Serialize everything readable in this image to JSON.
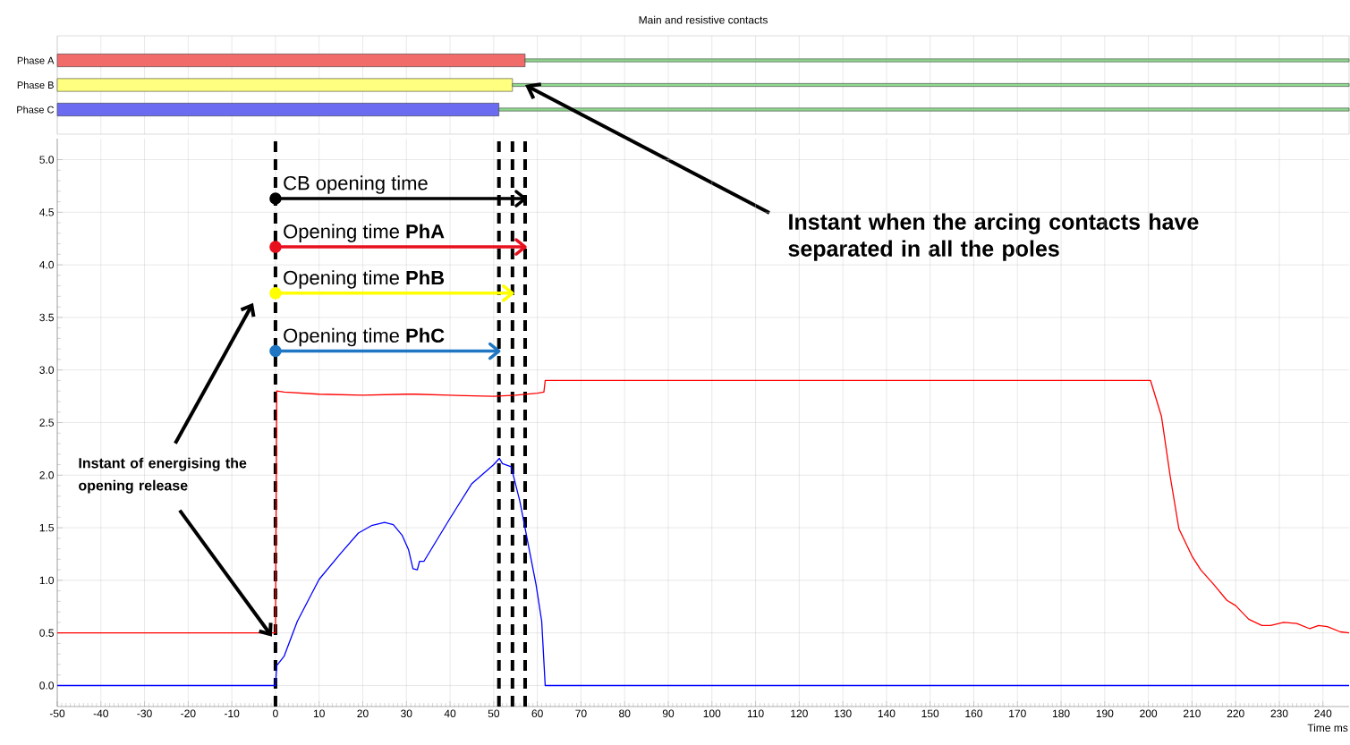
{
  "chart_data": [
    {
      "type": "bar",
      "orientation": "horizontal",
      "title": "Main and resistive contacts",
      "categories": [
        "Phase A",
        "Phase B",
        "Phase C"
      ],
      "series": [
        {
          "colors": [
            "#f26b6b",
            "#ffff80",
            "#6b6bf2"
          ],
          "base": [
            -50,
            -50,
            -50
          ],
          "values": [
            107.2,
            104.3,
            101.2
          ]
        },
        {
          "color": "#90d890",
          "base": [
            57.2,
            54.3,
            51.2
          ],
          "values": [
            188.8,
            191.7,
            194.8
          ]
        }
      ],
      "xlim": [
        -50,
        246
      ],
      "xticks": [
        -50,
        -40,
        -30,
        -20,
        -10,
        0,
        10,
        20,
        30,
        40,
        50,
        60,
        70,
        80,
        90,
        100,
        110,
        120,
        130,
        140,
        150,
        160,
        170,
        180,
        190,
        200,
        210,
        220,
        230,
        240
      ],
      "grid": "x",
      "tick_labels": "y",
      "annotations": [
        {
          "text": "Instant when the arcing contacts have separated in all the poles",
          "x": 57.2,
          "y": "Phase B"
        }
      ]
    },
    {
      "type": "line",
      "xlabel": "Time  ms",
      "series": [
        {
          "color": "#ff0000",
          "x": [
            -50,
            0,
            0.3,
            2,
            10,
            20,
            30,
            32,
            40,
            50,
            55,
            60,
            61.5,
            61.8,
            70,
            100,
            150,
            200,
            200.5,
            203,
            205,
            207,
            210,
            212,
            215,
            218,
            220,
            223,
            226,
            228,
            231,
            234,
            237,
            239,
            241,
            244,
            246
          ],
          "values": [
            0.5,
            0.5,
            2.8,
            2.79,
            2.77,
            2.76,
            2.77,
            2.77,
            2.76,
            2.75,
            2.76,
            2.78,
            2.79,
            2.9,
            2.9,
            2.9,
            2.9,
            2.9,
            2.9,
            2.56,
            1.99,
            1.49,
            1.23,
            1.1,
            0.96,
            0.81,
            0.76,
            0.63,
            0.57,
            0.57,
            0.6,
            0.59,
            0.54,
            0.57,
            0.56,
            0.51,
            0.5
          ]
        },
        {
          "color": "#0000ff",
          "x": [
            -50,
            0,
            0.3,
            2,
            5,
            10,
            15,
            19,
            22,
            25,
            27,
            29,
            30.5,
            31.5,
            32.5,
            33,
            34,
            40,
            45,
            50,
            51.3,
            52,
            54,
            56,
            59.7,
            61,
            61.8,
            246
          ],
          "values": [
            0,
            0,
            0.19,
            0.28,
            0.61,
            1.01,
            1.26,
            1.45,
            1.52,
            1.55,
            1.53,
            1.43,
            1.29,
            1.11,
            1.1,
            1.18,
            1.18,
            1.59,
            1.92,
            2.1,
            2.16,
            2.11,
            2.08,
            1.75,
            0.96,
            0.61,
            0,
            0
          ]
        },
        {
          "color": "#000000",
          "marker": "circle",
          "x": [
            0,
            57.2
          ],
          "values": [
            4.63,
            4.63
          ]
        },
        {
          "color": "#e8101e",
          "marker": "circle",
          "x": [
            0,
            57.2
          ],
          "values": [
            4.17,
            4.17
          ]
        },
        {
          "color": "#ffff00",
          "marker": "circle",
          "x": [
            0,
            54.3
          ],
          "values": [
            3.73,
            3.73
          ]
        },
        {
          "color": "#1f77c4",
          "marker": "circle",
          "x": [
            0,
            51.2
          ],
          "values": [
            3.18,
            3.18
          ]
        }
      ],
      "xlim": [
        -50,
        246
      ],
      "xticks": [
        -50,
        -40,
        -30,
        -20,
        -10,
        0,
        10,
        20,
        30,
        40,
        50,
        60,
        70,
        80,
        90,
        100,
        110,
        120,
        130,
        140,
        150,
        160,
        170,
        180,
        190,
        200,
        210,
        220,
        230,
        240
      ],
      "ylim": [
        -0.2,
        5.2
      ],
      "yticks": [
        {
          "value": 0,
          "label": "0.0"
        },
        {
          "value": 0.5,
          "label": "0.5"
        },
        {
          "value": 1,
          "label": "1.0"
        },
        {
          "value": 1.5,
          "label": "1.5"
        },
        {
          "value": 2,
          "label": "2.0"
        },
        {
          "value": 2.5,
          "label": "2.5"
        },
        {
          "value": 3,
          "label": "3.0"
        },
        {
          "value": 3.5,
          "label": "3.5"
        },
        {
          "value": 4,
          "label": "4.0"
        },
        {
          "value": 4.5,
          "label": "4.5"
        },
        {
          "value": 5,
          "label": "5.0"
        }
      ],
      "grid": true,
      "ref_lines": [
        {
          "axis": "x",
          "value": 0,
          "color": "#000000",
          "line_style": "dashed"
        },
        {
          "axis": "x",
          "value": 51.2,
          "color": "#000000",
          "line_style": "dashed"
        },
        {
          "axis": "x",
          "value": 54.3,
          "color": "#000000",
          "line_style": "dashed"
        },
        {
          "axis": "x",
          "value": 57.2,
          "color": "#000000",
          "line_style": "dashed"
        }
      ],
      "annotations": [
        "CB opening time",
        "Opening time **PhA**",
        "Opening time **PhB**",
        "Opening time **PhC**",
        {
          "text": "Instant of energising the opening release",
          "x": 0,
          "y": 0.5
        }
      ]
    }
  ]
}
